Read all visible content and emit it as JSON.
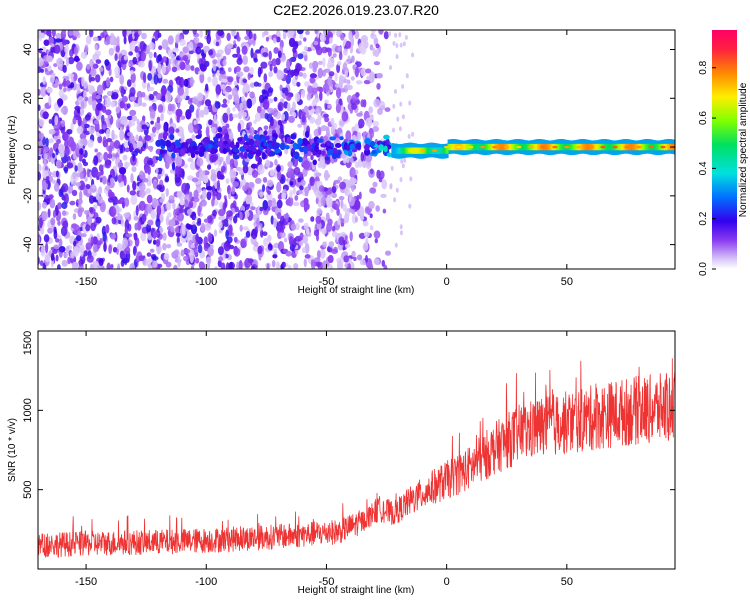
{
  "title": "C2E2.2026.019.23.07.R20",
  "chart_data": [
    {
      "type": "heatmap",
      "xlabel": "Height of straight line (km)",
      "ylabel": "Frequency (Hz)",
      "xlim": [
        -170,
        95
      ],
      "ylim": [
        -50,
        48
      ],
      "xticks": [
        -150,
        -100,
        -50,
        0,
        50
      ],
      "yticks": [
        -40,
        -20,
        0,
        20,
        40
      ],
      "colorbar": {
        "label": "Normalized spectral amplitude",
        "range": [
          0,
          0.95
        ],
        "ticks": [
          0.0,
          0.2,
          0.4,
          0.6,
          0.8
        ],
        "tick_labels": [
          "0.0",
          "0.2",
          "0.4",
          "0.6",
          "0.8"
        ]
      },
      "features": {
        "scatter_region_x": [
          -170,
          -23
        ],
        "line_start_x": -23,
        "line_freq_hz": 0,
        "peak_amplitude": 0.9
      }
    },
    {
      "type": "line",
      "xlabel": "Height of straight line (km)",
      "ylabel": "SNR (10 * v/v)",
      "xlim": [
        -170,
        95
      ],
      "ylim": [
        0,
        1500
      ],
      "xticks": [
        -150,
        -100,
        -50,
        0,
        50
      ],
      "yticks": [
        500,
        1000,
        1500
      ],
      "color": "#ee3333",
      "series": [
        {
          "x": [
            -170,
            -150,
            -120,
            -100,
            -80,
            -60,
            -45,
            -35,
            -28,
            -22,
            -15,
            -5,
            0,
            10,
            20,
            30,
            40,
            50,
            60,
            70,
            80,
            95
          ],
          "y": [
            150,
            160,
            170,
            180,
            195,
            215,
            235,
            300,
            380,
            350,
            430,
            520,
            560,
            640,
            760,
            850,
            900,
            920,
            950,
            980,
            1000,
            1020
          ]
        }
      ]
    }
  ]
}
